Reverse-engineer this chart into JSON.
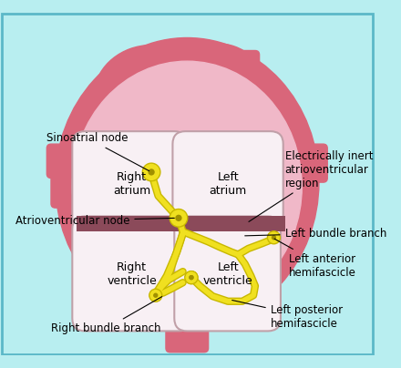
{
  "background_color": "#b8eef0",
  "border_color": "#5bb8c8",
  "heart_outer_color": "#d9667a",
  "heart_inner_color": "#f0b8c8",
  "chamber_color": "#f8f0f4",
  "septum_color": "#8b4a5a",
  "conduction_color": "#f0e020",
  "conduction_outline": "#c8b800",
  "node_color": "#f0e020",
  "node_outline": "#c8b800",
  "text_color": "#000000",
  "labels": {
    "sinoatrial": "Sinoatrial node",
    "av_node": "Atrioventricular node",
    "right_atrium": "Right\natrium",
    "left_atrium": "Left\natrium",
    "right_ventricle": "Right\nventricle",
    "left_ventricle": "Left\nventricle",
    "electrically_inert": "Electrically inert\natrioventricular\nregion",
    "left_bundle": "Left bundle branch",
    "left_anterior": "Left anterior\nhemifascicle",
    "left_posterior": "Left posterior\nhemifascicle",
    "right_bundle": "Right bundle branch"
  }
}
